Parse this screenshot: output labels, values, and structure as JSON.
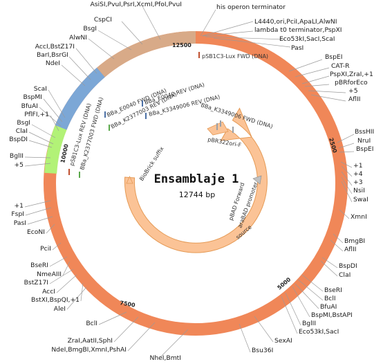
{
  "title": "Ensamblaje 1",
  "length_label": "12744 bp",
  "colors": {
    "backbone": "#f08758",
    "tan": "#d8aa88",
    "blue": "#7ca7d6",
    "green": "#b2f277",
    "source": "#fbc396",
    "source_edge": "#e59a55"
  },
  "ticks": [
    "2500",
    "5000",
    "7500",
    "10000",
    "12500"
  ],
  "feature_labels": {
    "lux_fwd": "pSB1C3-Lux FWD (DNA)",
    "e0040_fwd": "BBa_E0040 FWD (DNA)",
    "k2377003_rev": "BBa_K2377003 REV (DNA)",
    "e0040_rev": "BBa_E0040 REV (DNA)",
    "k3349006_rev": "BBa_K3349006 REV (DNA)",
    "k3349006_fwd": "BBa_K3349006 FWD (DNA)",
    "lux_rev": "pSB1C3-Lux REV (DNA)",
    "k2377003_fwd": "BBa_K2377003 FWD (DNA)",
    "biobrick_suffix": "BioBrick suffix",
    "pbr322": "pBR322ori-F",
    "pbad_forward": "pBAD Forward",
    "arabad_promoter": "araBAD promoter",
    "source": "source"
  },
  "labels_right": [
    "his operon terminator",
    "L4440,ori,PciI,ApaLI,AlwNI",
    "lambda t0 terminator,PspXI",
    "Eco53kI,SacI,ScaI",
    "PasI",
    "BspEI",
    "CAT-R",
    "PspXI,ZraI,+1",
    "pBRforEco",
    "+5",
    "AflII",
    "BssHII",
    "NruI",
    "BspEI",
    "+1",
    "+4",
    "+3",
    "NsiI",
    "SwaI",
    "XmnI",
    "BmgBI",
    "AflII",
    "BspDI",
    "ClaI",
    "BseRI",
    "BclI",
    "BfuAI",
    "BspMI,BstAPI",
    "BglII",
    "Eco53kI,SacI",
    "SexAI",
    "Bsu36I"
  ],
  "labels_left": [
    "AsiSI,PvuI,PsrI,XcmI,PfoI,PvuI",
    "CspCI",
    "BsgI",
    "AlwNI",
    "AccI,BstZ17I",
    "BarI,BsrGI",
    "NdeI",
    "ScaI",
    "BspMI",
    "BfuAI",
    "PflFI,+1",
    "BsgI",
    "ClaI",
    "BspDI",
    "BglII",
    "+5",
    "+1",
    "FspI",
    "PasI",
    "EcoNI",
    "PciI",
    "BseRI",
    "NmeAIII",
    "BstZ17I",
    "AccI",
    "BstXI,BspQI,+1",
    "AleI",
    "BclI",
    "ZraI,AatII,SphI",
    "NdeI,BmgBI,XmnI,PshAI",
    "NheI,BmtI"
  ]
}
